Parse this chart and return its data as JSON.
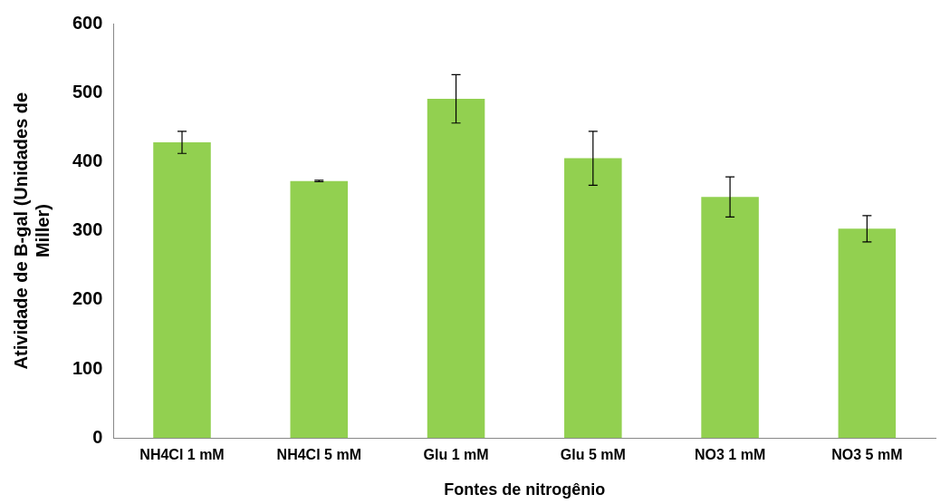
{
  "chart_data": {
    "type": "bar",
    "xlabel": "Fontes de nitrogênio",
    "ylabel": "Atividade de B-gal (Unidades de Miller)",
    "categories": [
      "NH4Cl 1 mM",
      "NH4Cl 5 mM",
      "Glu 1 mM",
      "Glu 5 mM",
      "NO3 1 mM",
      "NO3 5 mM"
    ],
    "values": [
      428,
      372,
      491,
      405,
      349,
      303
    ],
    "errors": [
      16,
      1,
      35,
      39,
      29,
      19
    ],
    "color": "#92d050",
    "ylim": [
      0,
      600
    ],
    "yticks": [
      0,
      100,
      200,
      300,
      400,
      500,
      600
    ],
    "grid": false,
    "legend": false
  }
}
